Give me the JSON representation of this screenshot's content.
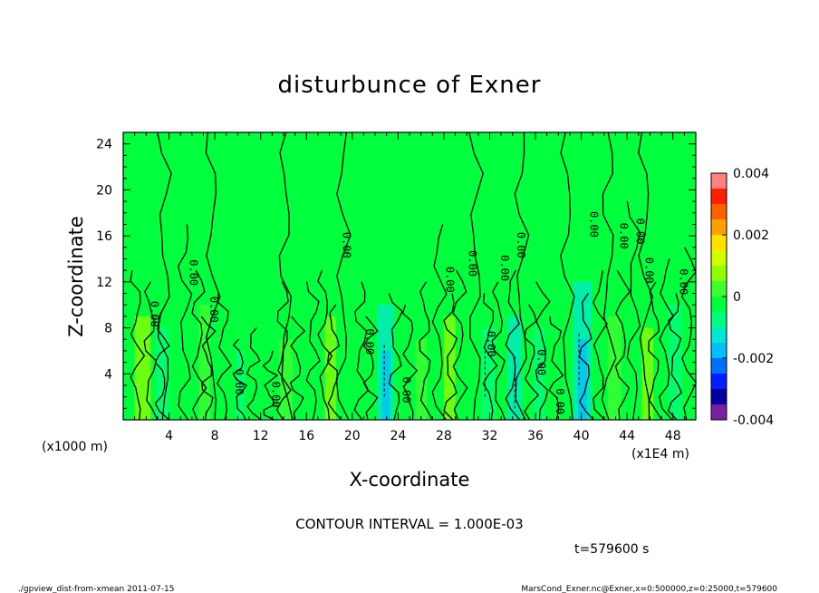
{
  "chart_data": {
    "type": "heatmap",
    "title": "disturbunce of Exner",
    "xlabel": "X-coordinate",
    "ylabel": "Z-coordinate",
    "x_unit_left": "(x1000 m)",
    "x_unit_right": "(x1E4 m)",
    "x_ticks": [
      "4",
      "8",
      "12",
      "16",
      "20",
      "24",
      "28",
      "32",
      "36",
      "40",
      "44",
      "48"
    ],
    "y_ticks": [
      "4",
      "8",
      "12",
      "16",
      "20",
      "24"
    ],
    "xlim": [
      0,
      50
    ],
    "ylim": [
      0,
      25
    ],
    "colorbar_ticks": [
      "0.004",
      "0.002",
      "0",
      "-0.002",
      "-0.004"
    ],
    "colorbar_range": [
      -0.004,
      0.004
    ],
    "contour_label": "0.00",
    "contour_interval_text": "CONTOUR INTERVAL = 1.000E-03",
    "time_text": "t=579600 s",
    "footer_left": "./gpview_dist-from-xmean  2011-07-15",
    "footer_right": "MarsCond_Exner.nc@Exner,x=0:500000,z=0:25000,t=579600",
    "colors": [
      "#7a1fa2",
      "#0000a0",
      "#0020ff",
      "#0070ff",
      "#00c0ff",
      "#00e8d0",
      "#00ff80",
      "#00ff3c",
      "#40ff30",
      "#90ff00",
      "#d0ff00",
      "#ffe000",
      "#ffa000",
      "#ff6000",
      "#ff2000",
      "#ff8080"
    ]
  }
}
